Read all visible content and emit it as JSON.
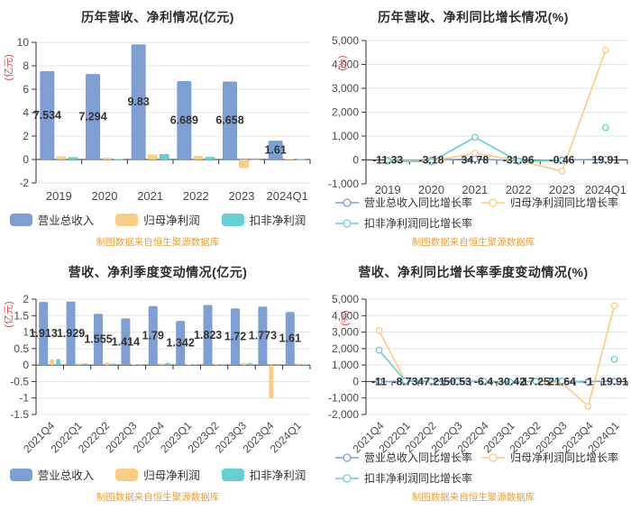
{
  "source_note": "制图数据来自恒生聚源数据库",
  "colors": {
    "revenue_blue": "#7e9fd4",
    "profit_orange": "#f9cd84",
    "nongaap_teal": "#66cfd1",
    "axis_label_red": "#e04e4e",
    "title_text": "#2d2d2d",
    "tick_text": "#4a4a4a",
    "data_label_text": "#333333",
    "grid_line": "#e4e4e4",
    "axis_line": "#333333",
    "footer_orange": "#e6a23c"
  },
  "chart_data": [
    {
      "id": "annual-amount",
      "type": "bar",
      "title": "历年营收、净利情况(亿元)",
      "ylabel": "(亿元)",
      "ylim": [
        -2,
        10
      ],
      "ystep": 2,
      "ytick_format": "plain",
      "grid": true,
      "legend_position": "bottom",
      "categories": [
        "2019",
        "2020",
        "2021",
        "2022",
        "2023",
        "2024Q1"
      ],
      "series": [
        {
          "name": "营业总收入",
          "color": "#7e9fd4",
          "values": [
            7.534,
            7.294,
            9.83,
            6.689,
            6.658,
            1.61
          ],
          "labels": [
            "7.534",
            "7.294",
            "9.83",
            "6.689",
            "6.658",
            "1.61"
          ]
        },
        {
          "name": "归母净利润",
          "color": "#f9cd84",
          "values": [
            0.26,
            0.14,
            0.42,
            0.3,
            -0.72,
            0.05
          ]
        },
        {
          "name": "扣非净利润",
          "color": "#66cfd1",
          "values": [
            0.2,
            0.04,
            0.47,
            0.22,
            -0.03,
            0.03
          ]
        }
      ]
    },
    {
      "id": "annual-growth",
      "type": "line",
      "title": "历年营收、净利同比增长情况(%)",
      "ylabel": "(%)",
      "ylim": [
        -1000,
        5000
      ],
      "ystep": 1000,
      "ytick_format": "thousands",
      "grid": true,
      "legend_position": "bottom",
      "categories": [
        "2019",
        "2020",
        "2021",
        "2022",
        "2023",
        "2024Q1"
      ],
      "series": [
        {
          "name": "营业总收入同比增长率",
          "color": "#7e9fd4",
          "values": [
            -11.33,
            -3.18,
            34.78,
            -31.96,
            -0.46,
            19.91
          ],
          "labels": [
            "-11.33",
            "-3.18",
            "34.78",
            "-31.96",
            "-0.46",
            "19.91"
          ]
        },
        {
          "name": "归母净利润同比增长率",
          "color": "#f9cd84",
          "values": [
            -35,
            -45,
            280,
            -35,
            -470,
            4600
          ]
        },
        {
          "name": "扣非净利润同比增长率",
          "color": "#66cfd1",
          "values": [
            -55,
            -75,
            950,
            -60,
            -30,
            1350
          ],
          "gaps": [
            4
          ]
        }
      ]
    },
    {
      "id": "quarterly-amount",
      "type": "bar",
      "title": "营收、净利季度变动情况(亿元)",
      "ylabel": "(亿元)",
      "ylim": [
        -1.5,
        2
      ],
      "ystep": 0.5,
      "ytick_format": "plain",
      "grid": true,
      "legend_position": "bottom",
      "categories": [
        "2021Q4",
        "2022Q1",
        "2022Q2",
        "2022Q3",
        "2022Q4",
        "2023Q1",
        "2023Q2",
        "2023Q3",
        "2023Q4",
        "2024Q1"
      ],
      "series": [
        {
          "name": "营业总收入",
          "color": "#7e9fd4",
          "values": [
            1.913,
            1.929,
            1.555,
            1.414,
            1.79,
            1.342,
            1.823,
            1.72,
            1.773,
            1.61
          ],
          "labels": [
            "1.913",
            "1.929",
            "1.555",
            "1.414",
            "1.79",
            "1.342",
            "1.823",
            "1.72",
            "1.773",
            "1.61"
          ]
        },
        {
          "name": "归母净利润",
          "color": "#f9cd84",
          "values": [
            0.17,
            0.05,
            0.08,
            0.02,
            0.05,
            0.02,
            0.03,
            0.07,
            -1.01,
            0.05
          ]
        },
        {
          "name": "扣非净利润",
          "color": "#66cfd1",
          "values": [
            0.18,
            0.05,
            0.05,
            0.02,
            0.07,
            0.02,
            0.02,
            0.06,
            -0.03,
            0.02
          ]
        }
      ]
    },
    {
      "id": "quarterly-growth",
      "type": "line",
      "title": "营收、净利同比增长率季度变动情况(%)",
      "ylabel": "(%)",
      "ylim": [
        -2000,
        5000
      ],
      "ystep": 1000,
      "ytick_format": "thousands",
      "grid": true,
      "legend_position": "bottom",
      "categories": [
        "2021Q4",
        "2022Q1",
        "2022Q2",
        "2022Q3",
        "2022Q4",
        "2023Q1",
        "2023Q2",
        "2023Q3",
        "2023Q4",
        "2024Q1"
      ],
      "series": [
        {
          "name": "营业总收入同比增长率",
          "color": "#7e9fd4",
          "values": [
            -11,
            -8.73,
            47.21,
            50.53,
            -6.4,
            -30.42,
            17.25,
            21.64,
            -1,
            19.91
          ],
          "labels": [
            "-11",
            "-8.73",
            "47.21",
            "50.53",
            "-6.4",
            "-30.42",
            "17.25",
            "21.64",
            "-1",
            "19.91"
          ]
        },
        {
          "name": "归母净利润同比增长率",
          "color": "#f9cd84",
          "values": [
            3100,
            60,
            20,
            -30,
            15,
            -25,
            30,
            -80,
            -1500,
            4600
          ]
        },
        {
          "name": "扣非净利润同比增长率",
          "color": "#66cfd1",
          "values": [
            1900,
            50,
            15,
            -20,
            20,
            -30,
            15,
            40,
            -60,
            1350
          ],
          "gaps": [
            8
          ]
        }
      ]
    }
  ]
}
